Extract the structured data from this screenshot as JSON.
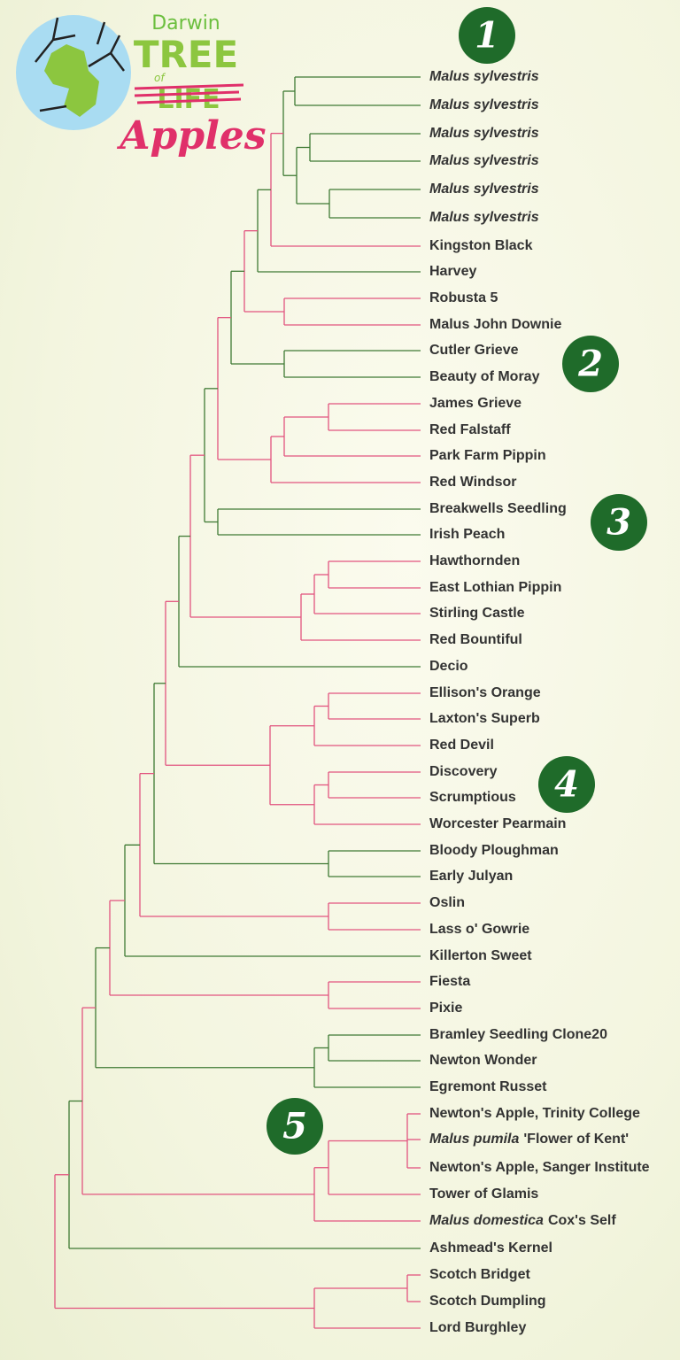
{
  "logo": {
    "line1": "Darwin",
    "line2": "TREE",
    "line3": "of",
    "line4": "LIFE",
    "line5": "Apples"
  },
  "badges": [
    "1",
    "2",
    "3",
    "4",
    "5"
  ],
  "leaves": [
    {
      "name": "Malus sylvestris",
      "italic": true
    },
    {
      "name": "Malus sylvestris",
      "italic": true
    },
    {
      "name": "Malus sylvestris",
      "italic": true
    },
    {
      "name": "Malus sylvestris",
      "italic": true
    },
    {
      "name": "Malus sylvestris",
      "italic": true
    },
    {
      "name": "Malus sylvestris",
      "italic": true
    },
    {
      "name": "Kingston Black"
    },
    {
      "name": "Harvey"
    },
    {
      "name": "Robusta 5"
    },
    {
      "name": "Malus John Downie"
    },
    {
      "name": "Cutler Grieve"
    },
    {
      "name": "Beauty of Moray"
    },
    {
      "name": "James Grieve"
    },
    {
      "name": "Red Falstaff"
    },
    {
      "name": "Park Farm Pippin"
    },
    {
      "name": "Red Windsor"
    },
    {
      "name": "Breakwells Seedling"
    },
    {
      "name": "Irish Peach"
    },
    {
      "name": "Hawthornden"
    },
    {
      "name": "East Lothian Pippin"
    },
    {
      "name": "Stirling Castle"
    },
    {
      "name": "Red Bountiful"
    },
    {
      "name": "Decio"
    },
    {
      "name": "Ellison's Orange"
    },
    {
      "name": "Laxton's Superb"
    },
    {
      "name": "Red Devil"
    },
    {
      "name": "Discovery"
    },
    {
      "name": "Scrumptious"
    },
    {
      "name": "Worcester Pearmain"
    },
    {
      "name": "Bloody Ploughman"
    },
    {
      "name": "Early Julyan"
    },
    {
      "name": "Oslin"
    },
    {
      "name": "Lass o' Gowrie"
    },
    {
      "name": "Killerton Sweet"
    },
    {
      "name": "Fiesta"
    },
    {
      "name": "Pixie"
    },
    {
      "name": "Bramley Seedling Clone20"
    },
    {
      "name": "Newton Wonder"
    },
    {
      "name": "Egremont Russet"
    },
    {
      "name": "Newton's Apple, Trinity College"
    },
    {
      "species": "Malus pumila",
      "name": "'Flower of Kent'"
    },
    {
      "name": "Newton's Apple, Sanger Institute"
    },
    {
      "name": "Tower of Glamis"
    },
    {
      "species": "Malus domestica",
      "name": "Cox's Self"
    },
    {
      "name": "Ashmead's Kernel"
    },
    {
      "name": "Scotch Bridget"
    },
    {
      "name": "Scotch Dumpling"
    },
    {
      "name": "Lord Burghley"
    }
  ]
}
